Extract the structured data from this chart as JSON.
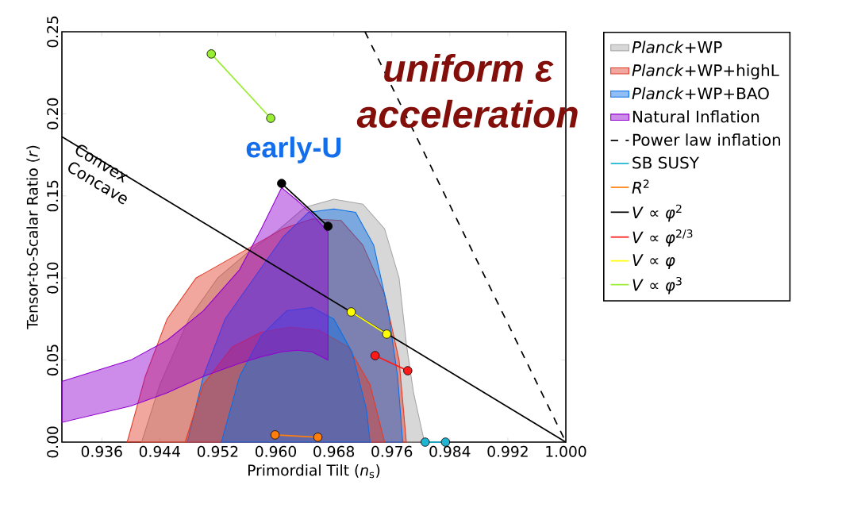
{
  "chart_data": {
    "type": "area",
    "xlabel": "Primordial Tilt (*n*$_{s}$)",
    "ylabel": "Tensor-to-Scalar Ratio (*r*)",
    "xlim": [
      0.9305,
      1.0
    ],
    "ylim": [
      0,
      0.25
    ],
    "xticks": [
      {
        "value": 0.936,
        "label": "0.936"
      },
      {
        "value": 0.944,
        "label": "0.944"
      },
      {
        "value": 0.952,
        "label": "0.952"
      },
      {
        "value": 0.96,
        "label": "0.960"
      },
      {
        "value": 0.968,
        "label": "0.968"
      },
      {
        "value": 0.976,
        "label": "0.976"
      },
      {
        "value": 0.984,
        "label": "0.984"
      },
      {
        "value": 0.992,
        "label": "0.992"
      },
      {
        "value": 1.0,
        "label": "1.000"
      }
    ],
    "yticks": [
      {
        "value": 0,
        "label": "0.00"
      },
      {
        "value": 0.05,
        "label": "0.05"
      },
      {
        "value": 0.1,
        "label": "0.10"
      },
      {
        "value": 0.15,
        "label": "0.15"
      },
      {
        "value": 0.2,
        "label": "0.20"
      },
      {
        "value": 0.25,
        "label": "0.25"
      }
    ],
    "legend": "right",
    "series": [
      {
        "name": "*Planck*+WP",
        "color": "#a6a6a6",
        "x": [
          0.9415,
          0.944,
          0.948,
          0.952,
          0.956,
          0.96,
          0.964,
          0.968,
          0.972,
          0.975,
          0.977,
          0.978,
          0.979,
          0.9805
        ],
        "values": [
          0,
          0.035,
          0.075,
          0.1,
          0.115,
          0.128,
          0.143,
          0.148,
          0.145,
          0.13,
          0.1,
          0.06,
          0.03,
          0
        ]
      },
      {
        "name": "*Planck*+WP+highL",
        "color": "#e03c28",
        "x": [
          0.9395,
          0.942,
          0.945,
          0.949,
          0.953,
          0.957,
          0.961,
          0.965,
          0.969,
          0.972,
          0.975,
          0.977,
          0.978
        ],
        "values": [
          0,
          0.04,
          0.075,
          0.1,
          0.11,
          0.12,
          0.13,
          0.136,
          0.135,
          0.12,
          0.09,
          0.05,
          0
        ]
      },
      {
        "name": "*Planck*+WP+BAO",
        "color": "#0a6fe6",
        "x": [
          0.9478,
          0.95,
          0.953,
          0.957,
          0.961,
          0.9645,
          0.968,
          0.971,
          0.9735,
          0.9755,
          0.9768,
          0.9775
        ],
        "values": [
          0,
          0.04,
          0.075,
          0.1,
          0.125,
          0.14,
          0.142,
          0.14,
          0.12,
          0.08,
          0.04,
          0
        ]
      },
      {
        "color": "#e03c28",
        "x": [
          0.9475,
          0.95,
          0.954,
          0.958,
          0.962,
          0.966,
          0.97,
          0.973,
          0.975
        ],
        "values": [
          0,
          0.035,
          0.058,
          0.067,
          0.07,
          0.068,
          0.058,
          0.035,
          0
        ]
      },
      {
        "color": "#0a6fe6",
        "x": [
          0.9525,
          0.955,
          0.958,
          0.9615,
          0.965,
          0.968,
          0.9705,
          0.9725,
          0.973
        ],
        "values": [
          0,
          0.04,
          0.065,
          0.08,
          0.082,
          0.075,
          0.055,
          0.02,
          0
        ]
      },
      {
        "name": "Natural Inflation",
        "color": "#9000d0",
        "x": [
          0.9305,
          0.94,
          0.945,
          0.95,
          0.955,
          0.958,
          0.9608,
          0.963,
          0.965,
          0.9672
        ],
        "values": [
          null,
          null,
          null,
          null,
          null,
          null,
          null,
          null,
          null,
          null
        ],
        "lower": [
          0.012,
          0.022,
          0.03,
          0.04,
          0.048,
          0.052,
          0.055,
          0.056,
          0.055,
          0.05
        ],
        "upper": [
          0.037,
          0.05,
          0.062,
          0.08,
          0.105,
          0.13,
          0.155,
          0.147,
          0.139,
          0.128
        ]
      },
      {
        "type": "line",
        "name": "Power law inflation",
        "color": "#000000",
        "line_style": "dashed",
        "marker": "none",
        "x": [
          0.9723,
          1.0
        ],
        "values": [
          0.25,
          0
        ]
      },
      {
        "type": "line",
        "color": "#000000",
        "marker": "none",
        "x": [
          0.9305,
          1.0
        ],
        "values": [
          0.186,
          0
        ]
      },
      {
        "type": "line",
        "name": "SB SUSY",
        "color": "#1fb4d2",
        "marker": "circle",
        "x": [
          0.9806,
          0.9834
        ],
        "values": [
          0,
          0
        ]
      },
      {
        "type": "line",
        "name": "*R*$^{2}$",
        "color": "#ff7f0e",
        "marker": "circle",
        "x": [
          0.9599,
          0.9658
        ],
        "values": [
          0.0044,
          0.003
        ]
      },
      {
        "type": "line",
        "name": "*V* ∝ *φ*$^{2}$",
        "color": "#000000",
        "marker": "circle",
        "x": [
          0.9608,
          0.9672
        ],
        "values": [
          0.1576,
          0.1315
        ]
      },
      {
        "type": "line",
        "name": "*V* ∝ *φ*$^{2/3}$",
        "color": "#ff1a1a",
        "marker": "circle",
        "x": [
          0.9737,
          0.9782
        ],
        "values": [
          0.0527,
          0.0435
        ]
      },
      {
        "type": "line",
        "name": "*V* ∝ *φ*",
        "color": "#ffff00",
        "marker": "circle",
        "x": [
          0.9704,
          0.9753
        ],
        "values": [
          0.0793,
          0.0658
        ]
      },
      {
        "type": "line",
        "name": "*V* ∝ *φ*$^{3}$",
        "color": "#99ee33",
        "marker": "circle",
        "x": [
          0.9511,
          0.9593
        ],
        "values": [
          0.2365,
          0.1973
        ]
      }
    ],
    "annotations": [
      "Convex",
      "Concave",
      "early-U",
      "uniform ε",
      "acceleration"
    ]
  }
}
